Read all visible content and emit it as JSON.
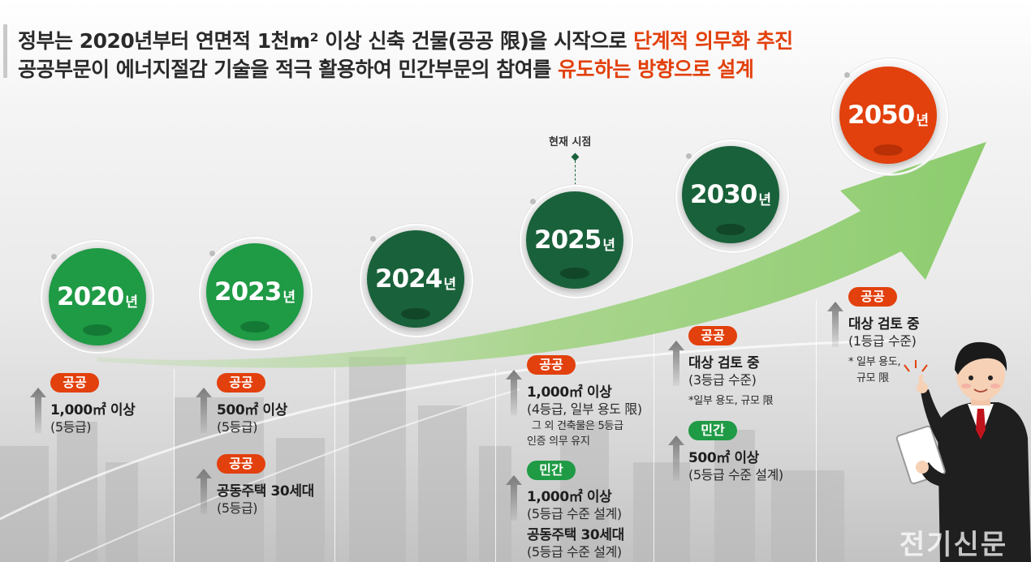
{
  "headline": {
    "line1_prefix": "정부는 2020년부터 연면적 1천m² 이상 신축 건물(공공 限)을 시작으로 ",
    "line1_highlight": "단계적 의무화 추진",
    "line2_prefix": "공공부문이 에너지절감 기술을 적극 활용하여 민간부문의 참여를 ",
    "line2_highlight": "유도하는 방향으로 설계"
  },
  "current_marker": "현재 시점",
  "year_suffix": "년",
  "colors": {
    "accent_orange": "#e2400c",
    "green_light": "#1f9a45",
    "green_dark": "#19613a",
    "arrow": "#8ccc6e"
  },
  "years": [
    {
      "year": "2020",
      "color": "#1f9a45"
    },
    {
      "year": "2023",
      "color": "#1f9a45"
    },
    {
      "year": "2024",
      "color": "#19613a"
    },
    {
      "year": "2025",
      "color": "#19613a"
    },
    {
      "year": "2030",
      "color": "#19613a"
    },
    {
      "year": "2050",
      "color": "#e2400c"
    }
  ],
  "col2020": {
    "badge": "공공",
    "line1": "1,000㎡ 이상",
    "line2": "(5등급)"
  },
  "col2023": {
    "badge1": "공공",
    "a_line1": "500㎡ 이상",
    "a_line2": "(5등급)",
    "badge2": "공공",
    "b_line1": "공동주택 30세대",
    "b_line2": "(5등급)"
  },
  "col2025": {
    "badge1": "공공",
    "a_line1": "1,000㎡ 이상",
    "a_line2": "(4등급, 일부 용도 限)",
    "a_note1": "그 외 건축물은 5등급",
    "a_note2": "인증 의무 유지",
    "badge2": "민간",
    "b_line1": "1,000㎡ 이상",
    "b_line2": "(5등급 수준 설계)",
    "b_line3": "공동주택 30세대",
    "b_line4": "(5등급 수준 설계)"
  },
  "col2030": {
    "badge1": "공공",
    "a_line1": "대상 검토 중",
    "a_line2": "(3등급 수준)",
    "a_note": "*일부 용도, 규모 限",
    "badge2": "민간",
    "b_line1": "500㎡ 이상",
    "b_line2": "(5등급 수준 설계)"
  },
  "col2050": {
    "badge": "공공",
    "line1": "대상 검토 중",
    "line2": "(1등급 수준)",
    "note1": "* 일부 용도,",
    "note2": "규모 限"
  },
  "watermark": "전기신문"
}
